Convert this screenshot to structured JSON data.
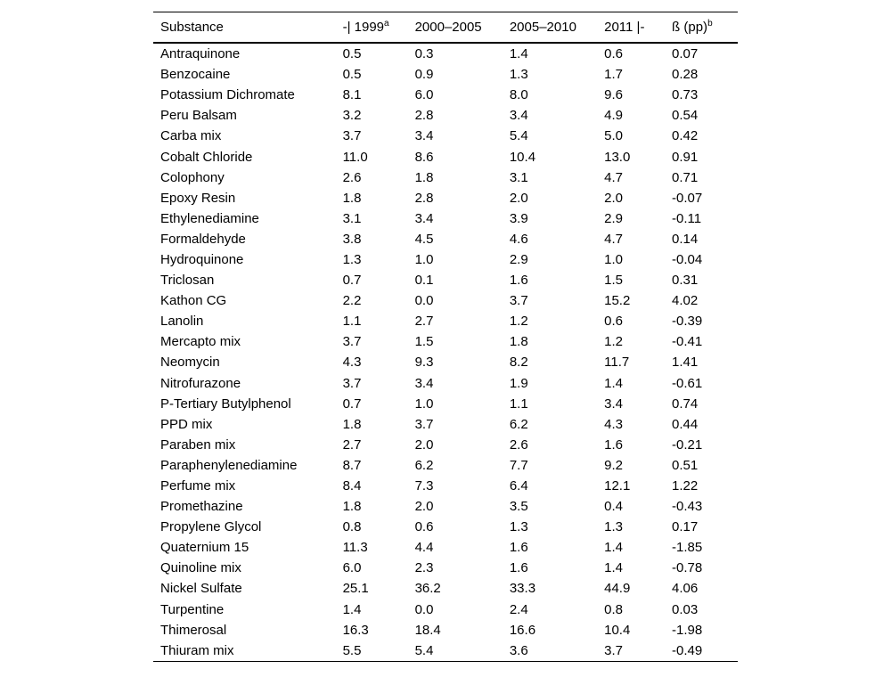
{
  "page": {
    "background_color": "#ffffff",
    "text_color": "#000000",
    "rule_color": "#000000"
  },
  "table": {
    "columns": [
      {
        "label": "Substance",
        "sup": ""
      },
      {
        "label": "-| 1999",
        "sup": "a"
      },
      {
        "label": "2000–2005",
        "sup": ""
      },
      {
        "label": "2005–2010",
        "sup": ""
      },
      {
        "label": "2011 |-",
        "sup": ""
      },
      {
        "label": "ß (pp)",
        "sup": "b"
      }
    ],
    "rows": [
      {
        "substance": "Antraquinone",
        "values": [
          "0.5",
          "0.3",
          "1.4",
          "0.6",
          "0.07"
        ]
      },
      {
        "substance": "Benzocaine",
        "values": [
          "0.5",
          "0.9",
          "1.3",
          "1.7",
          "0.28"
        ]
      },
      {
        "substance": "Potassium Dichromate",
        "values": [
          "8.1",
          "6.0",
          "8.0",
          "9.6",
          "0.73"
        ]
      },
      {
        "substance": "Peru Balsam",
        "values": [
          "3.2",
          "2.8",
          "3.4",
          "4.9",
          "0.54"
        ]
      },
      {
        "substance": "Carba mix",
        "values": [
          "3.7",
          "3.4",
          "5.4",
          "5.0",
          "0.42"
        ]
      },
      {
        "substance": "Cobalt Chloride",
        "values": [
          "11.0",
          "8.6",
          "10.4",
          "13.0",
          "0.91"
        ]
      },
      {
        "substance": "Colophony",
        "values": [
          "2.6",
          "1.8",
          "3.1",
          "4.7",
          "0.71"
        ]
      },
      {
        "substance": "Epoxy Resin",
        "values": [
          "1.8",
          "2.8",
          "2.0",
          "2.0",
          "-0.07"
        ]
      },
      {
        "substance": "Ethylenediamine",
        "values": [
          "3.1",
          "3.4",
          "3.9",
          "2.9",
          "-0.11"
        ]
      },
      {
        "substance": "Formaldehyde",
        "values": [
          "3.8",
          "4.5",
          "4.6",
          "4.7",
          "0.14"
        ]
      },
      {
        "substance": "Hydroquinone",
        "values": [
          "1.3",
          "1.0",
          "2.9",
          "1.0",
          "-0.04"
        ]
      },
      {
        "substance": "Triclosan",
        "values": [
          "0.7",
          "0.1",
          "1.6",
          "1.5",
          "0.31"
        ]
      },
      {
        "substance": "Kathon CG",
        "values": [
          "2.2",
          "0.0",
          "3.7",
          "15.2",
          "4.02"
        ]
      },
      {
        "substance": "Lanolin",
        "values": [
          "1.1",
          "2.7",
          "1.2",
          "0.6",
          "-0.39"
        ]
      },
      {
        "substance": "Mercapto mix",
        "values": [
          "3.7",
          "1.5",
          "1.8",
          "1.2",
          "-0.41"
        ]
      },
      {
        "substance": "Neomycin",
        "values": [
          "4.3",
          "9.3",
          "8.2",
          "11.7",
          "1.41"
        ]
      },
      {
        "substance": "Nitrofurazone",
        "values": [
          "3.7",
          "3.4",
          "1.9",
          "1.4",
          "-0.61"
        ]
      },
      {
        "substance": "P-Tertiary Butylphenol",
        "values": [
          "0.7",
          "1.0",
          "1.1",
          "3.4",
          "0.74"
        ]
      },
      {
        "substance": "PPD mix",
        "values": [
          "1.8",
          "3.7",
          "6.2",
          "4.3",
          "0.44"
        ]
      },
      {
        "substance": "Paraben mix",
        "values": [
          "2.7",
          "2.0",
          "2.6",
          "1.6",
          "-0.21"
        ]
      },
      {
        "substance": "Paraphenylenediamine",
        "values": [
          "8.7",
          "6.2",
          "7.7",
          "9.2",
          "0.51"
        ]
      },
      {
        "substance": "Perfume mix",
        "values": [
          "8.4",
          "7.3",
          "6.4",
          "12.1",
          "1.22"
        ]
      },
      {
        "substance": "Promethazine",
        "values": [
          "1.8",
          "2.0",
          "3.5",
          "0.4",
          "-0.43"
        ]
      },
      {
        "substance": "Propylene Glycol",
        "values": [
          "0.8",
          "0.6",
          "1.3",
          "1.3",
          "0.17"
        ]
      },
      {
        "substance": "Quaternium 15",
        "values": [
          "11.3",
          "4.4",
          "1.6",
          "1.4",
          "-1.85"
        ]
      },
      {
        "substance": "Quinoline mix",
        "values": [
          "6.0",
          "2.3",
          "1.6",
          "1.4",
          "-0.78"
        ]
      },
      {
        "substance": "Nickel Sulfate",
        "values": [
          "25.1",
          "36.2",
          "33.3",
          "44.9",
          "4.06"
        ]
      },
      {
        "substance": "Turpentine",
        "values": [
          "1.4",
          "0.0",
          "2.4",
          "0.8",
          "0.03"
        ]
      },
      {
        "substance": "Thimerosal",
        "values": [
          "16.3",
          "18.4",
          "16.6",
          "10.4",
          "-1.98"
        ]
      },
      {
        "substance": "Thiuram mix",
        "values": [
          "5.5",
          "5.4",
          "3.6",
          "3.7",
          "-0.49"
        ]
      }
    ]
  }
}
